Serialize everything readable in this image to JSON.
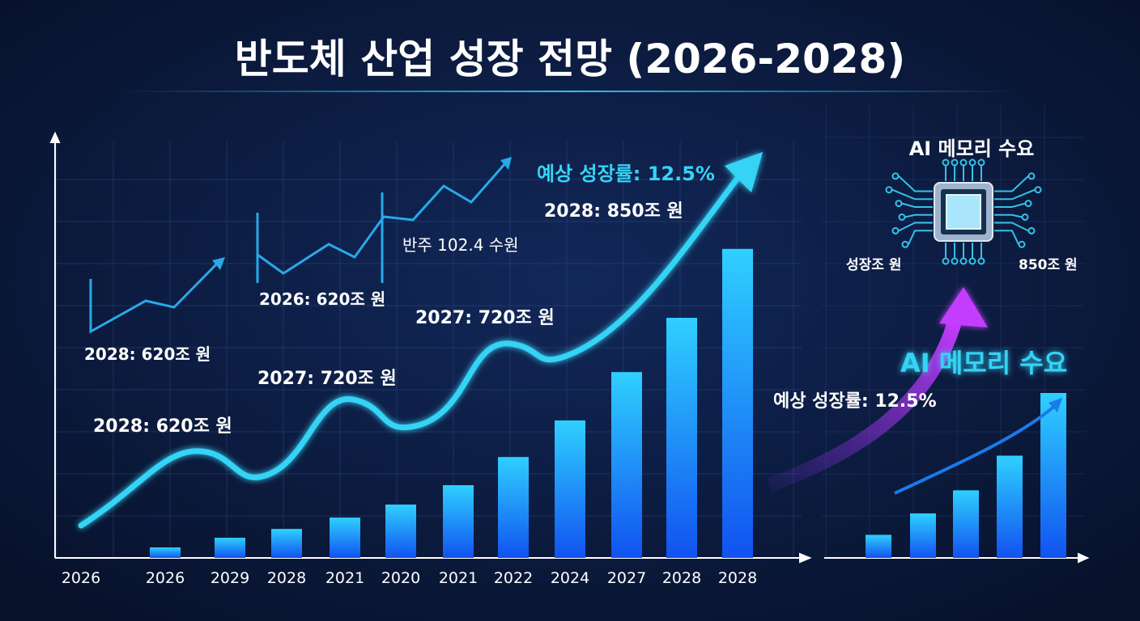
{
  "title": "반도체 산업 성장 전망 (2026-2028)",
  "colors": {
    "background": "#0a1633",
    "accent": "#29c6f2",
    "bar": "#1a8cff",
    "highlight": "#b23cff"
  },
  "chart_data": [
    {
      "type": "bar",
      "categories": [
        "2026",
        "2026",
        "2029",
        "2028",
        "2021",
        "2020",
        "2021",
        "2022",
        "2024",
        "2027",
        "2028",
        "2028"
      ],
      "values": [
        null,
        2.5,
        4.8,
        6.9,
        9.6,
        12.7,
        17.3,
        24.0,
        32.7,
        44.2,
        57.1,
        73.5
      ],
      "ylim": [
        0,
        100
      ],
      "grid": true,
      "overlay": "rising trend curve ending in arrow",
      "annotations": [
        "2028: 620조 원",
        "2026: 620조 원",
        "반주 102.4 수원",
        "예상 성장률: 12.5%",
        "2028: 850조 원",
        "2027: 720조 원",
        "2027: 720조 원",
        "2028: 620조 원"
      ]
    },
    {
      "type": "bar",
      "values": [
        14,
        27,
        41,
        62,
        100
      ],
      "ylim": [
        0,
        110
      ],
      "grid": true,
      "overlay": "rising trend arrow"
    }
  ],
  "side_panel": {
    "chip_title": "AI 메모리 수요",
    "chip_left_label": "성장조 원",
    "chip_right_label": "850조 원",
    "highlight_title": "AI 메모리 수요",
    "highlight_rate": "예상 성장률: 12.5%",
    "chip_icon": "memory-chip-icon"
  }
}
